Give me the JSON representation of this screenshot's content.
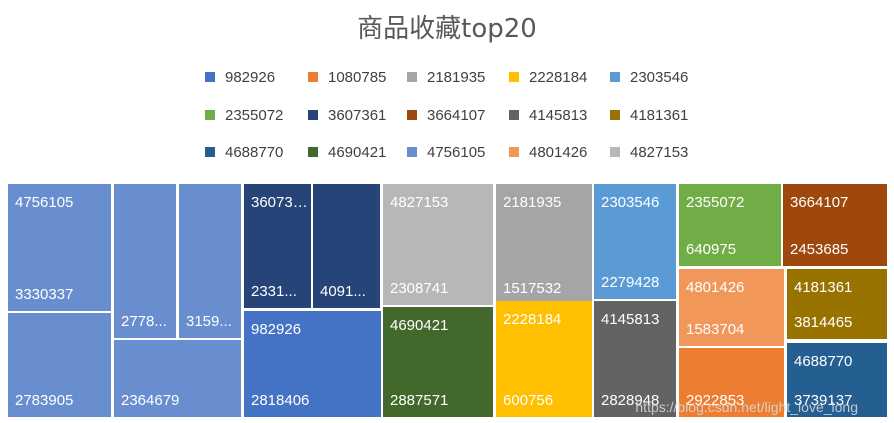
{
  "chart_data": {
    "type": "treemap",
    "title": "商品收藏top20",
    "legend_position": "top",
    "legend": [
      {
        "name": "982926",
        "color": "#4472C4"
      },
      {
        "name": "1080785",
        "color": "#ED7D31"
      },
      {
        "name": "2181935",
        "color": "#A5A5A5"
      },
      {
        "name": "2228184",
        "color": "#FFC000"
      },
      {
        "name": "2303546",
        "color": "#5B9BD5"
      },
      {
        "name": "2355072",
        "color": "#70AD47"
      },
      {
        "name": "3607361",
        "color": "#264478"
      },
      {
        "name": "3664107",
        "color": "#9E480E"
      },
      {
        "name": "4145813",
        "color": "#636363"
      },
      {
        "name": "4181361",
        "color": "#997300"
      },
      {
        "name": "4688770",
        "color": "#255E91"
      },
      {
        "name": "4690421",
        "color": "#43682B"
      },
      {
        "name": "4756105",
        "color": "#698ED0"
      },
      {
        "name": "4801426",
        "color": "#F1975A"
      },
      {
        "name": "4827153",
        "color": "#B7B7B7"
      }
    ],
    "groups": [
      {
        "name": "4756105",
        "color": "#698ED0",
        "items": [
          "3330337",
          "2783905",
          "2778...",
          "2364679",
          "3159..."
        ]
      },
      {
        "name": "3607361",
        "color": "#264478",
        "items": [
          "2331...",
          "4091..."
        ]
      },
      {
        "name": "982926",
        "color": "#4472C4",
        "items": [
          "2818406"
        ]
      },
      {
        "name": "4827153",
        "color": "#B7B7B7",
        "items": [
          "2308741"
        ]
      },
      {
        "name": "4690421",
        "color": "#43682B",
        "items": [
          "2887571"
        ]
      },
      {
        "name": "2181935",
        "color": "#A5A5A5",
        "items": [
          "1517532"
        ]
      },
      {
        "name": "2228184",
        "color": "#FFC000",
        "items": [
          "600756"
        ]
      },
      {
        "name": "2303546",
        "color": "#5B9BD5",
        "items": [
          "2279428"
        ]
      },
      {
        "name": "4145813",
        "color": "#636363",
        "items": [
          "2828948"
        ]
      },
      {
        "name": "2355072",
        "color": "#70AD47",
        "items": [
          "640975"
        ]
      },
      {
        "name": "4801426",
        "color": "#F1975A",
        "items": [
          "1583704"
        ]
      },
      {
        "name": "1080785",
        "color": "#ED7D31",
        "items": [
          "2922853"
        ]
      },
      {
        "name": "3664107",
        "color": "#9E480E",
        "items": [
          "2453685"
        ]
      },
      {
        "name": "4181361",
        "color": "#997300",
        "items": [
          "3814465"
        ]
      },
      {
        "name": "4688770",
        "color": "#255E91",
        "items": [
          "3739137"
        ]
      }
    ]
  },
  "watermark": "https://blog.csdn.net/light_love_long"
}
